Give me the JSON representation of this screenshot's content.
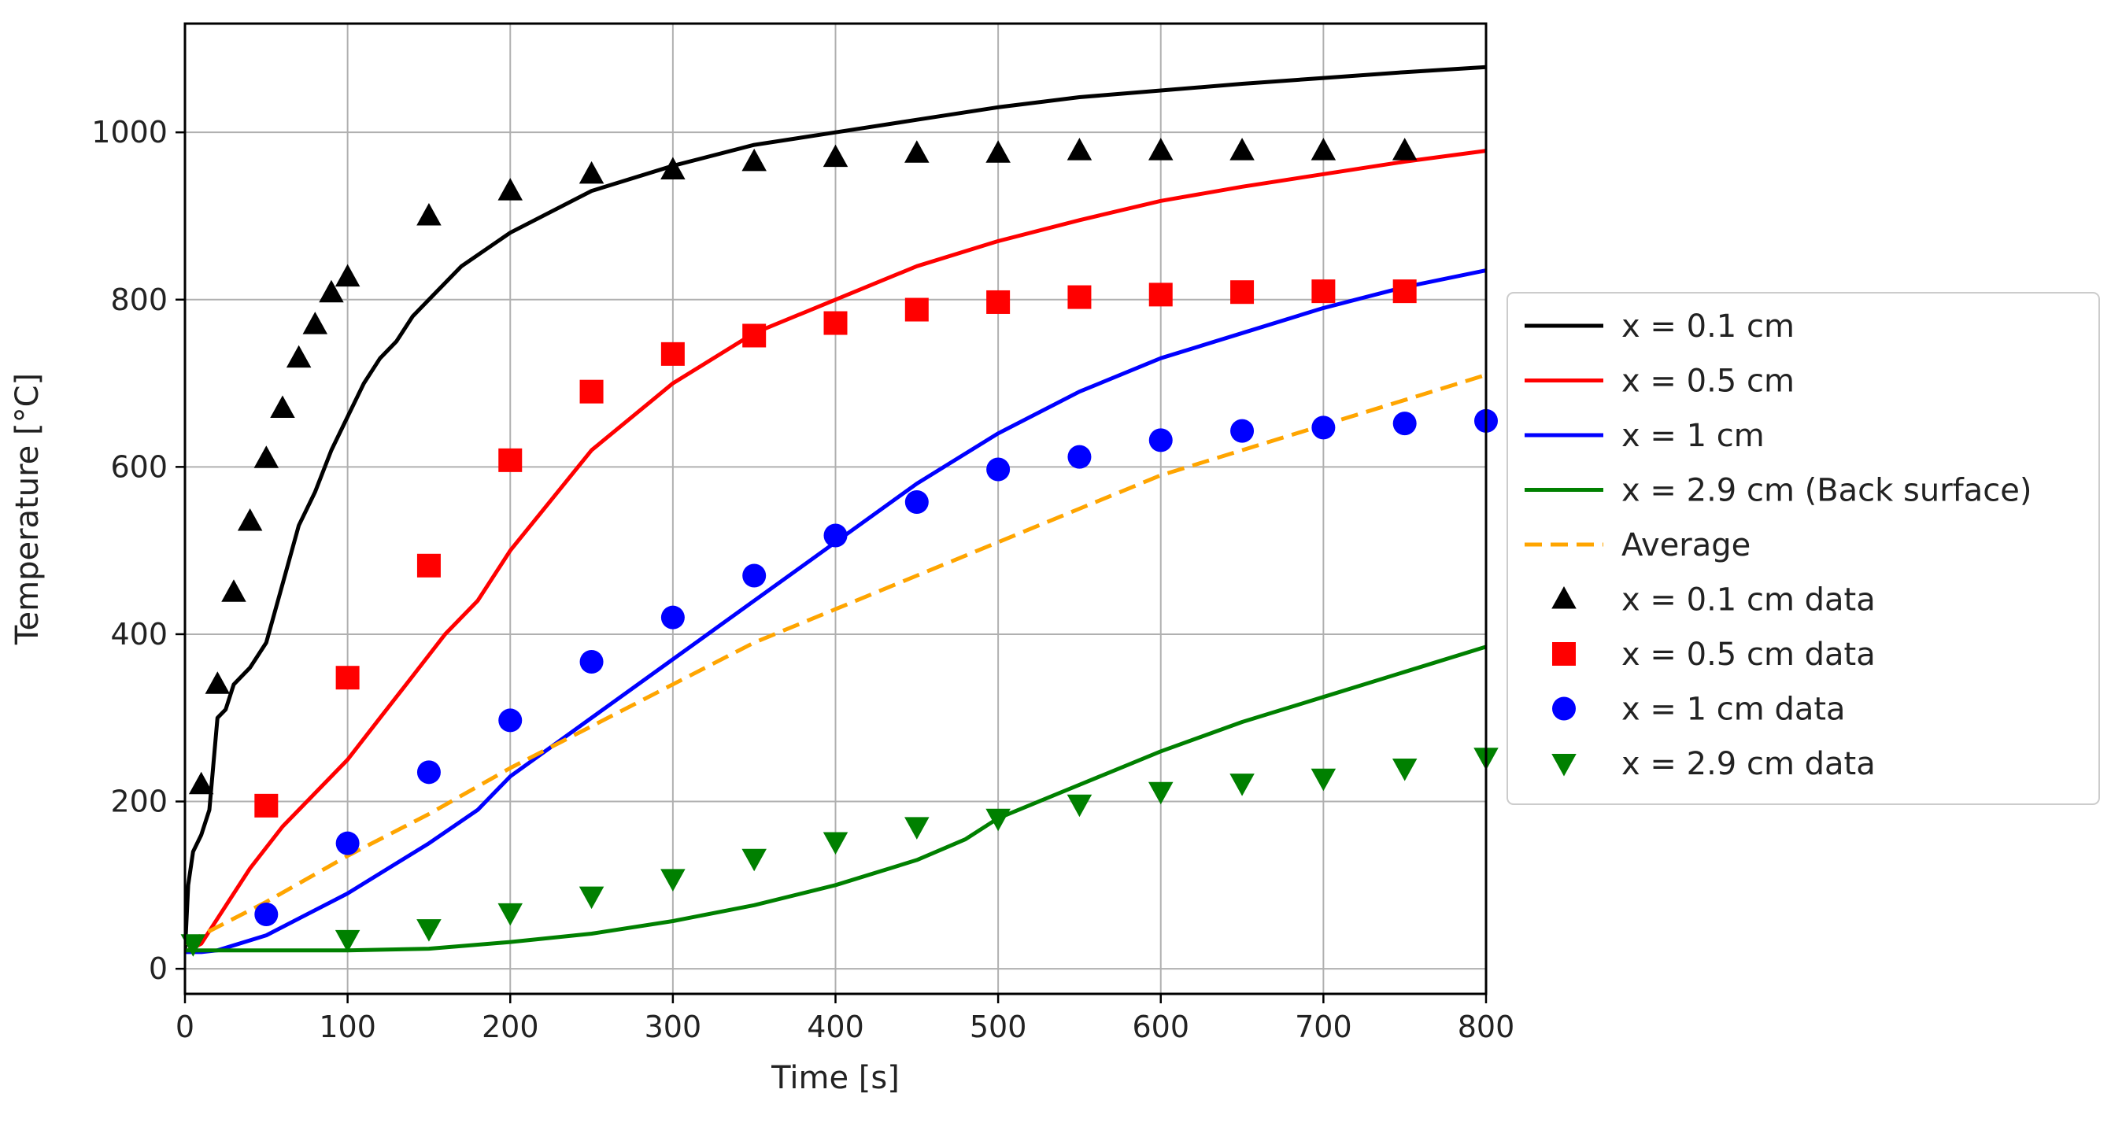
{
  "chart_data": {
    "type": "line",
    "title": "",
    "xlabel": "Time [s]",
    "ylabel": "Temperature [°C]",
    "xlim": [
      0,
      800
    ],
    "ylim": [
      -30,
      1130
    ],
    "xticks": [
      0,
      100,
      200,
      300,
      400,
      500,
      600,
      700,
      800
    ],
    "yticks": [
      0,
      200,
      400,
      600,
      800,
      1000
    ],
    "xtick_labels": [
      "0",
      "100",
      "200",
      "300",
      "400",
      "500",
      "600",
      "700",
      "800"
    ],
    "ytick_labels": [
      "0",
      "200",
      "400",
      "600",
      "800",
      "1000"
    ],
    "grid": true,
    "legend_position": "right-outside",
    "series": [
      {
        "name": "x = 0.1 cm",
        "kind": "line",
        "color": "#000000",
        "dash": "solid",
        "x": [
          0,
          2,
          5,
          10,
          15,
          20,
          25,
          30,
          40,
          50,
          60,
          70,
          80,
          90,
          100,
          110,
          120,
          130,
          140,
          150,
          170,
          200,
          250,
          300,
          350,
          400,
          450,
          500,
          550,
          600,
          650,
          700,
          750,
          800
        ],
        "y": [
          20,
          100,
          140,
          160,
          190,
          300,
          310,
          340,
          360,
          390,
          460,
          530,
          570,
          620,
          660,
          700,
          730,
          750,
          780,
          800,
          840,
          880,
          930,
          960,
          985,
          1000,
          1015,
          1030,
          1042,
          1050,
          1058,
          1065,
          1072,
          1078
        ]
      },
      {
        "name": "x = 0.5 cm",
        "kind": "line",
        "color": "#ff0000",
        "dash": "solid",
        "x": [
          0,
          10,
          20,
          40,
          60,
          80,
          100,
          120,
          140,
          160,
          180,
          200,
          250,
          300,
          350,
          400,
          450,
          500,
          550,
          600,
          650,
          700,
          750,
          800
        ],
        "y": [
          20,
          30,
          60,
          120,
          170,
          210,
          250,
          300,
          350,
          400,
          440,
          500,
          620,
          700,
          760,
          800,
          840,
          870,
          895,
          918,
          935,
          950,
          965,
          978
        ]
      },
      {
        "name": "x = 1 cm",
        "kind": "line",
        "color": "#0000ff",
        "dash": "solid",
        "x": [
          0,
          10,
          20,
          50,
          100,
          150,
          180,
          200,
          250,
          300,
          350,
          400,
          450,
          500,
          550,
          600,
          650,
          700,
          750,
          800
        ],
        "y": [
          20,
          20,
          22,
          40,
          90,
          150,
          190,
          230,
          300,
          370,
          440,
          510,
          580,
          640,
          690,
          730,
          760,
          790,
          815,
          835
        ]
      },
      {
        "name": "x = 2.9 cm (Back surface)",
        "kind": "line",
        "color": "#008000",
        "dash": "solid",
        "x": [
          0,
          100,
          150,
          200,
          250,
          300,
          350,
          400,
          450,
          480,
          500,
          550,
          600,
          650,
          700,
          750,
          800
        ],
        "y": [
          22,
          22,
          24,
          32,
          42,
          57,
          76,
          100,
          130,
          155,
          180,
          220,
          260,
          295,
          325,
          355,
          385
        ]
      },
      {
        "name": "Average",
        "kind": "line",
        "color": "#ffa500",
        "dash": "dashed",
        "x": [
          0,
          50,
          100,
          150,
          200,
          250,
          300,
          350,
          400,
          450,
          500,
          550,
          600,
          650,
          700,
          750,
          800
        ],
        "y": [
          30,
          80,
          135,
          185,
          240,
          290,
          340,
          390,
          430,
          470,
          510,
          550,
          590,
          620,
          650,
          680,
          710
        ]
      },
      {
        "name": "x = 0.1 cm data",
        "kind": "scatter",
        "marker": "triangle-up",
        "color": "#000000",
        "x": [
          10,
          20,
          30,
          40,
          50,
          60,
          70,
          80,
          90,
          100,
          150,
          200,
          250,
          300,
          350,
          400,
          450,
          500,
          550,
          600,
          650,
          700,
          750
        ],
        "y": [
          220,
          340,
          450,
          535,
          610,
          670,
          730,
          770,
          808,
          827,
          900,
          930,
          950,
          955,
          965,
          970,
          975,
          975,
          978,
          978,
          978,
          978,
          978
        ]
      },
      {
        "name": "x = 0.5 cm data",
        "kind": "scatter",
        "marker": "square",
        "color": "#ff0000",
        "x": [
          50,
          100,
          150,
          200,
          250,
          300,
          350,
          400,
          450,
          500,
          550,
          600,
          650,
          700,
          750
        ],
        "y": [
          195,
          348,
          482,
          608,
          690,
          735,
          757,
          772,
          788,
          797,
          803,
          806,
          809,
          810,
          810
        ]
      },
      {
        "name": "x = 1 cm data",
        "kind": "scatter",
        "marker": "circle",
        "color": "#0000ff",
        "x": [
          50,
          100,
          150,
          200,
          250,
          300,
          350,
          400,
          450,
          500,
          550,
          600,
          650,
          700,
          750,
          800
        ],
        "y": [
          65,
          150,
          235,
          297,
          367,
          420,
          470,
          518,
          558,
          597,
          612,
          632,
          643,
          647,
          652,
          655
        ]
      },
      {
        "name": "x = 2.9 cm data",
        "kind": "scatter",
        "marker": "triangle-down",
        "color": "#008000",
        "x": [
          5,
          100,
          150,
          200,
          250,
          300,
          350,
          400,
          450,
          500,
          550,
          600,
          650,
          700,
          750,
          800
        ],
        "y": [
          30,
          35,
          48,
          67,
          87,
          108,
          132,
          152,
          170,
          180,
          197,
          212,
          222,
          228,
          240,
          253
        ]
      }
    ]
  }
}
